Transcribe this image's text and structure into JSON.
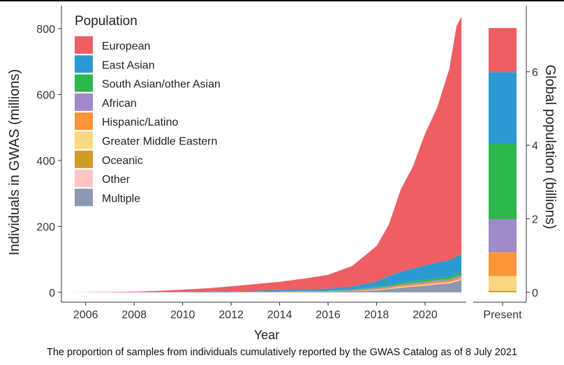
{
  "caption": "The proportion of samples from individuals cumulatively reported by the GWAS Catalog as of 8 July 2021",
  "chart_data": [
    {
      "type": "area",
      "xlabel": "Year",
      "ylabel": "Individuals in GWAS (millions)",
      "xlim": [
        2005,
        2021.7
      ],
      "ylim": [
        -30,
        870
      ],
      "x_ticks": [
        2006,
        2008,
        2010,
        2012,
        2014,
        2016,
        2018,
        2020
      ],
      "y_ticks": [
        0,
        200,
        400,
        600,
        800
      ],
      "legend": {
        "title": "Population",
        "placement": "top-left",
        "entries": [
          {
            "label": "European",
            "color": "#EE5E63"
          },
          {
            "label": "East Asian",
            "color": "#2B9AD3"
          },
          {
            "label": "South Asian/other Asian",
            "color": "#2DB84B"
          },
          {
            "label": "African",
            "color": "#A08AC9"
          },
          {
            "label": "Hispanic/Latino",
            "color": "#FB9538"
          },
          {
            "label": "Greater Middle Eastern",
            "color": "#F9D783"
          },
          {
            "label": "Oceanic",
            "color": "#CF9C25"
          },
          {
            "label": "Other",
            "color": "#FFC4C4"
          },
          {
            "label": "Multiple",
            "color": "#8C97B1"
          }
        ]
      },
      "x": [
        2005.3,
        2007,
        2008,
        2009,
        2010,
        2011,
        2012,
        2013,
        2014,
        2015,
        2016,
        2017,
        2018,
        2018.5,
        2019,
        2019.5,
        2020,
        2020.5,
        2021,
        2021.3,
        2021.5
      ],
      "series": [
        {
          "name": "Multiple",
          "values": [
            0,
            0,
            0,
            0,
            0,
            0,
            0,
            0.5,
            1,
            1.5,
            2,
            3,
            6,
            10,
            14,
            17,
            20,
            24,
            27,
            33,
            38
          ]
        },
        {
          "name": "Other",
          "values": [
            0,
            0,
            0,
            0,
            0,
            0,
            0,
            0,
            0,
            0,
            0,
            0,
            1,
            1,
            1.5,
            1.5,
            2,
            2,
            2,
            2,
            2
          ]
        },
        {
          "name": "Oceanic",
          "values": [
            0,
            0,
            0,
            0,
            0,
            0,
            0,
            0,
            0,
            0,
            0,
            0,
            0,
            0,
            0,
            0.5,
            0.5,
            0.5,
            0.5,
            0.5,
            0.5
          ]
        },
        {
          "name": "Greater Middle Eastern",
          "values": [
            0,
            0,
            0,
            0,
            0,
            0,
            0,
            0,
            0,
            0,
            0,
            0.2,
            0.5,
            0.5,
            1,
            1,
            1,
            1,
            1,
            1,
            1
          ]
        },
        {
          "name": "Hispanic/Latino",
          "values": [
            0,
            0,
            0,
            0,
            0,
            0,
            0.3,
            0.5,
            0.5,
            1,
            1,
            2,
            3,
            4,
            4,
            5,
            5,
            5,
            5,
            6,
            6
          ]
        },
        {
          "name": "African",
          "values": [
            0,
            0,
            0,
            0,
            0,
            0.2,
            0.3,
            0.5,
            0.5,
            1,
            1,
            2,
            3,
            3,
            4,
            4,
            4,
            5,
            5,
            6,
            6
          ]
        },
        {
          "name": "South Asian/other Asian",
          "values": [
            0,
            0,
            0,
            0,
            0.2,
            0.3,
            0.5,
            0.5,
            1,
            1,
            1,
            2,
            3,
            4,
            5,
            5,
            6,
            7,
            7,
            8,
            8
          ]
        },
        {
          "name": "East Asian",
          "values": [
            0,
            0,
            0,
            0.5,
            1,
            1.5,
            2,
            3,
            4,
            5,
            6,
            9,
            16,
            27,
            33,
            38,
            43,
            46,
            50,
            52,
            55
          ]
        },
        {
          "name": "European",
          "values": [
            0,
            1,
            2,
            4,
            7,
            10,
            15,
            20,
            25,
            32,
            42,
            62,
            108,
            155,
            250,
            310,
            400,
            470,
            580,
            700,
            720
          ]
        }
      ]
    },
    {
      "type": "bar",
      "xlabel": "Present",
      "ylabel": "Global population (billions)",
      "ylim": [
        -0.27,
        7.8
      ],
      "y_ticks": [
        0,
        2,
        4,
        6
      ],
      "categories": [
        "Present"
      ],
      "series": [
        {
          "name": "Oceanic",
          "values": [
            0.04
          ]
        },
        {
          "name": "Greater Middle Eastern",
          "values": [
            0.4
          ]
        },
        {
          "name": "Hispanic/Latino",
          "values": [
            0.65
          ]
        },
        {
          "name": "African",
          "values": [
            0.9
          ]
        },
        {
          "name": "South Asian/other Asian",
          "values": [
            2.05
          ]
        },
        {
          "name": "East Asian",
          "values": [
            1.95
          ]
        },
        {
          "name": "European",
          "values": [
            1.2
          ]
        }
      ]
    }
  ]
}
